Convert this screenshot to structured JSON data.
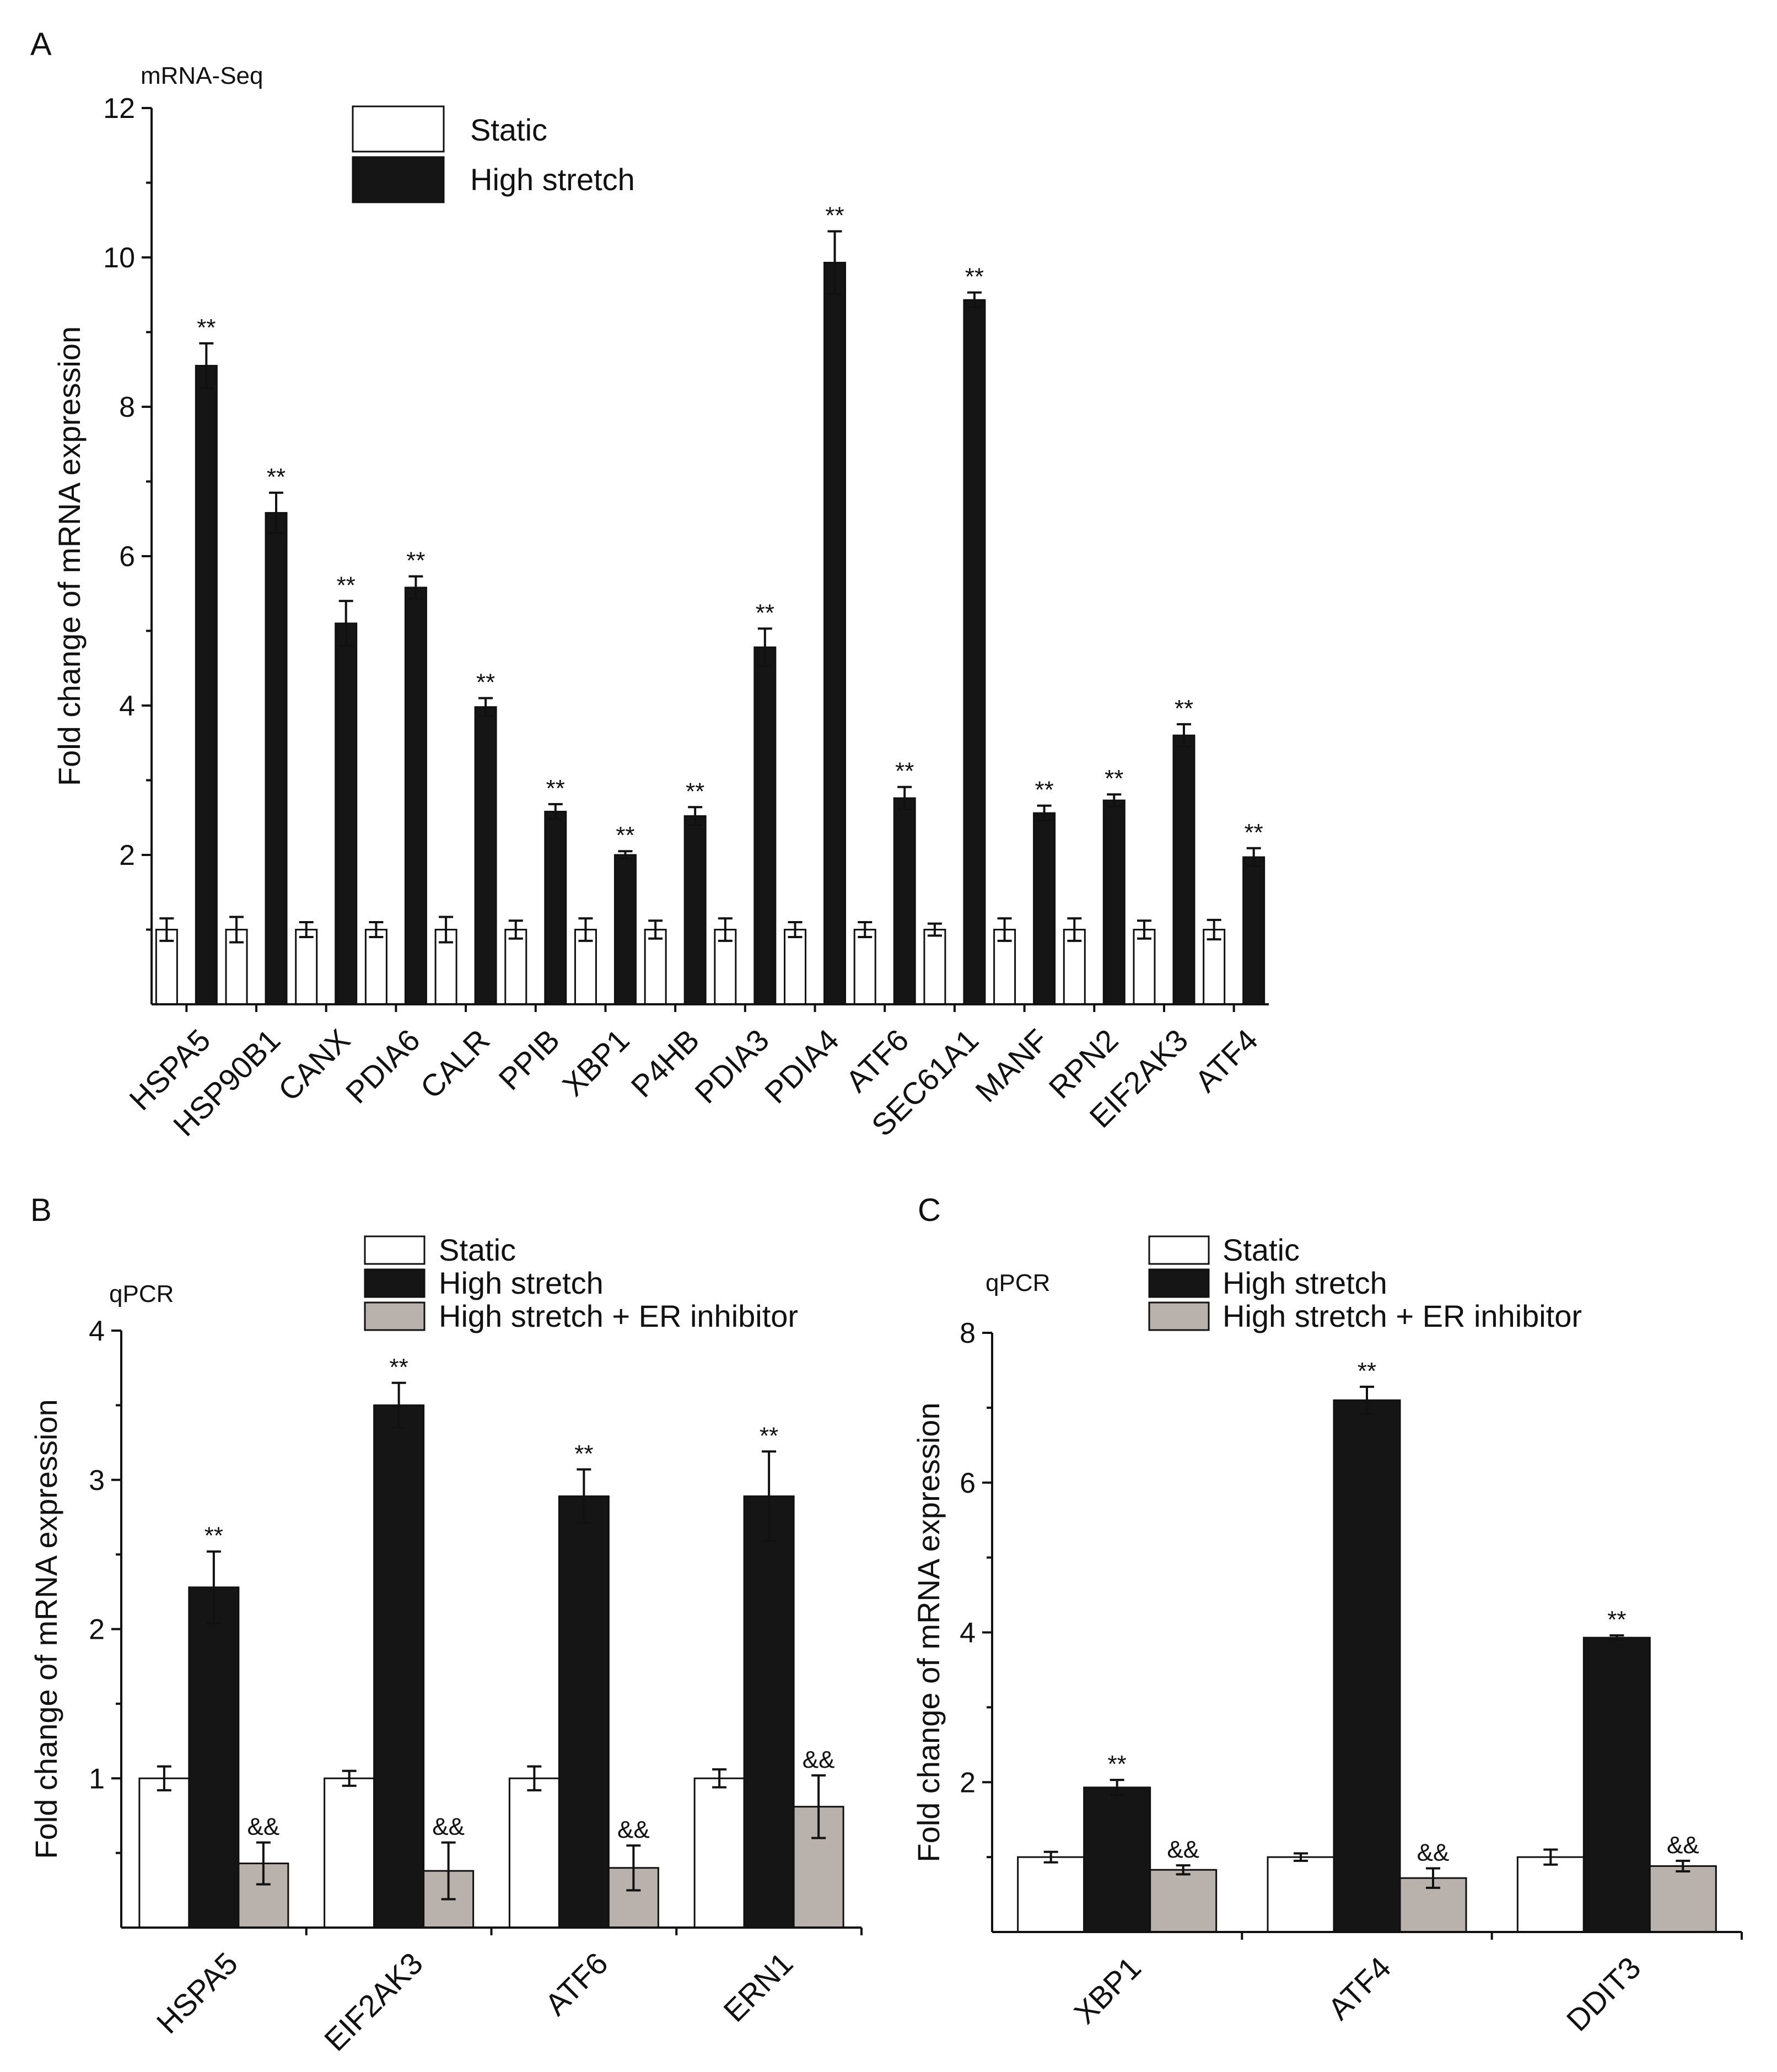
{
  "colors": {
    "static": "#ffffff",
    "high_stretch": "#151515",
    "er_inhibitor": "#b9b1ac",
    "stroke": "#111111"
  },
  "panels": [
    {
      "letter": "A",
      "corner_label": "mRNA-Seq",
      "legend": [
        "Static",
        "High stretch"
      ],
      "chart_data": {
        "type": "bar",
        "ylabel": "Fold change of mRNA expression",
        "ylim": [
          0,
          12
        ],
        "yticks": [
          2,
          4,
          6,
          8,
          10,
          12
        ],
        "categories": [
          "HSPA5",
          "HSP90B1",
          "CANX",
          "PDIA6",
          "CALR",
          "PPIB",
          "XBP1",
          "P4HB",
          "PDIA3",
          "PDIA4",
          "ATF6",
          "SEC61A1",
          "MANF",
          "RPN2",
          "EIF2AK3",
          "ATF4"
        ],
        "series": [
          {
            "name": "Static",
            "values": [
              1,
              1,
              1,
              1,
              1,
              1,
              1,
              1,
              1,
              1,
              1,
              1,
              1,
              1,
              1,
              1
            ],
            "errors": [
              0.15,
              0.17,
              0.1,
              0.1,
              0.17,
              0.12,
              0.15,
              0.12,
              0.15,
              0.1,
              0.1,
              0.08,
              0.15,
              0.15,
              0.12,
              0.13
            ],
            "labels": []
          },
          {
            "name": "High stretch",
            "values": [
              8.55,
              6.58,
              5.1,
              5.58,
              3.98,
              2.58,
              2.0,
              2.52,
              4.78,
              9.93,
              2.76,
              9.43,
              2.56,
              2.73,
              3.6,
              1.97
            ],
            "errors": [
              0.3,
              0.27,
              0.3,
              0.15,
              0.12,
              0.1,
              0.05,
              0.12,
              0.25,
              0.42,
              0.15,
              0.1,
              0.1,
              0.08,
              0.15,
              0.12
            ],
            "labels": [
              "**",
              "**",
              "**",
              "**",
              "**",
              "**",
              "**",
              "**",
              "**",
              "**",
              "**",
              "**",
              "**",
              "**",
              "**",
              "**"
            ]
          }
        ]
      }
    },
    {
      "letter": "B",
      "corner_label": "qPCR",
      "legend": [
        "Static",
        "High stretch",
        "High stretch + ER inhibitor"
      ],
      "chart_data": {
        "type": "bar",
        "ylabel": "Fold change of mRNA expression",
        "ylim": [
          0,
          4
        ],
        "yticks": [
          1,
          2,
          3,
          4
        ],
        "categories": [
          "HSPA5",
          "EIF2AK3",
          "ATF6",
          "ERN1"
        ],
        "series": [
          {
            "name": "Static",
            "values": [
              1,
              1,
              1,
              1
            ],
            "errors": [
              0.08,
              0.05,
              0.08,
              0.06
            ],
            "labels": []
          },
          {
            "name": "High stretch",
            "values": [
              2.28,
              3.5,
              2.89,
              2.89
            ],
            "errors": [
              0.24,
              0.15,
              0.18,
              0.3
            ],
            "labels": [
              "**",
              "**",
              "**",
              "**"
            ]
          },
          {
            "name": "High stretch + ER inhibitor",
            "values": [
              0.43,
              0.38,
              0.4,
              0.81
            ],
            "errors": [
              0.14,
              0.19,
              0.15,
              0.21
            ],
            "labels": [
              "&&",
              "&&",
              "&&",
              "&&"
            ]
          }
        ]
      }
    },
    {
      "letter": "C",
      "corner_label": "qPCR",
      "legend": [
        "Static",
        "High stretch",
        "High stretch + ER inhibitor"
      ],
      "chart_data": {
        "type": "bar",
        "ylabel": "Fold change of mRNA expression",
        "ylim": [
          0,
          8
        ],
        "yticks": [
          2,
          4,
          6,
          8
        ],
        "categories": [
          "XBP1",
          "ATF4",
          "DDIT3"
        ],
        "series": [
          {
            "name": "Static",
            "values": [
              1,
              1,
              1
            ],
            "errors": [
              0.07,
              0.05,
              0.1
            ],
            "labels": []
          },
          {
            "name": "High stretch",
            "values": [
              1.93,
              7.1,
              3.93
            ],
            "errors": [
              0.1,
              0.18,
              0.03
            ],
            "labels": [
              "**",
              "**",
              "**"
            ]
          },
          {
            "name": "High stretch + ER inhibitor",
            "values": [
              0.83,
              0.72,
              0.88
            ],
            "errors": [
              0.06,
              0.13,
              0.07
            ],
            "labels": [
              "&&",
              "&&",
              "&&"
            ]
          }
        ]
      }
    }
  ]
}
